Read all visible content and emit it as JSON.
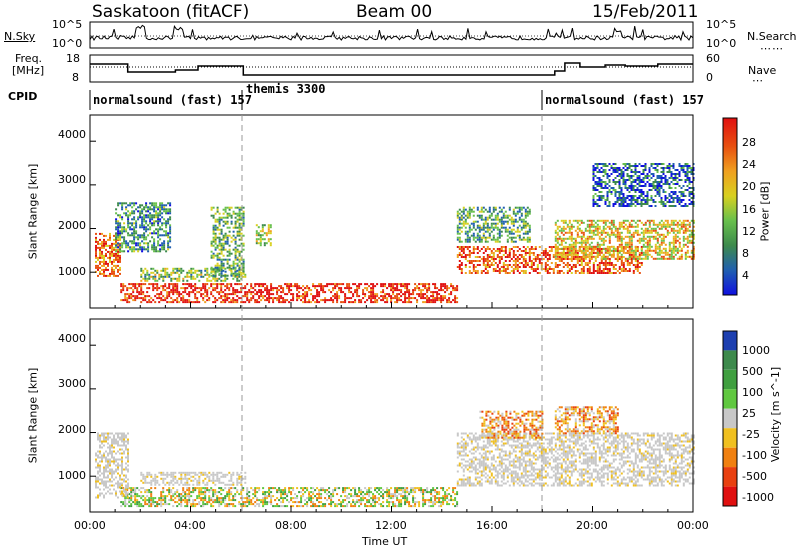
{
  "header": {
    "station": "Saskatoon (fitACF)",
    "beam": "Beam 00",
    "date": "15/Feb/2011"
  },
  "noise_panel": {
    "left_label": "N.Sky",
    "right_label": "N.Search",
    "left_ticks": [
      "10^5",
      "10^0"
    ],
    "right_ticks": [
      "10^5",
      "10^0"
    ]
  },
  "freq_panel": {
    "left_label_line1": "Freq.",
    "left_label_line2": "[MHz]",
    "right_label": "Nave",
    "left_ticks": [
      "18",
      "8"
    ],
    "right_ticks": [
      "60",
      "0"
    ]
  },
  "cpid_panel": {
    "label": "CPID",
    "modes": [
      {
        "name": "normalsound (fast) 157",
        "start_hour": 0
      },
      {
        "name": "themis 3300",
        "start_hour": 6
      },
      {
        "name": "normalsound (fast) 157",
        "start_hour": 18
      }
    ]
  },
  "chart_data": [
    {
      "type": "heatmap",
      "title": "Power",
      "ylabel": "Slant Range [km]",
      "xlabel": "Time UT",
      "xlim": [
        0,
        24
      ],
      "ylim": [
        180,
        4600
      ],
      "yticks": [
        "1000",
        "2000",
        "3000",
        "4000"
      ],
      "xticks": [
        "00:00",
        "04:00",
        "08:00",
        "12:00",
        "16:00",
        "20:00",
        "00:00"
      ],
      "colorbar_label": "Power [dB]",
      "colorbar_ticks": [
        "4",
        "8",
        "12",
        "16",
        "20",
        "24",
        "28"
      ],
      "colorbar_colors": [
        "#1010e0",
        "#205fb0",
        "#3d8a4c",
        "#68c04c",
        "#d8d020",
        "#f0a020",
        "#e85010",
        "#e01010"
      ],
      "regions": [
        {
          "t0": 1.2,
          "t1": 14.6,
          "r0": 300,
          "r1": 750,
          "level": 0.9
        },
        {
          "t0": 0.2,
          "t1": 1.2,
          "r0": 900,
          "r1": 1900,
          "level": 0.75
        },
        {
          "t0": 14.6,
          "t1": 22,
          "r0": 1000,
          "r1": 1600,
          "level": 0.8
        },
        {
          "t0": 18.5,
          "t1": 24,
          "r0": 1300,
          "r1": 2200,
          "level": 0.6
        },
        {
          "t0": 2,
          "t1": 6.2,
          "r0": 800,
          "r1": 1100,
          "level": 0.45
        },
        {
          "t0": 1,
          "t1": 3.2,
          "r0": 1500,
          "r1": 2600,
          "level": 0.3
        },
        {
          "t0": 14.6,
          "t1": 17.5,
          "r0": 1700,
          "r1": 2500,
          "level": 0.35
        },
        {
          "t0": 6.6,
          "t1": 7.2,
          "r0": 1600,
          "r1": 2100,
          "level": 0.55
        },
        {
          "t0": 4.8,
          "t1": 6.1,
          "r0": 900,
          "r1": 2500,
          "level": 0.4
        },
        {
          "t0": 20,
          "t1": 24,
          "r0": 2500,
          "r1": 3500,
          "level": 0.2
        }
      ]
    },
    {
      "type": "heatmap",
      "title": "Velocity",
      "ylabel": "Slant Range [km]",
      "xlabel": "Time UT",
      "xlim": [
        0,
        24
      ],
      "ylim": [
        180,
        4600
      ],
      "yticks": [
        "1000",
        "2000",
        "3000",
        "4000"
      ],
      "xticks": [
        "00:00",
        "04:00",
        "08:00",
        "12:00",
        "16:00",
        "20:00",
        "00:00"
      ],
      "colorbar_label": "Velocity [m s^-1]",
      "colorbar_ticks": [
        "1000",
        "500",
        "100",
        "25",
        "-25",
        "-100",
        "-500",
        "-1000"
      ],
      "colorbar_colors": [
        "#1d3fb0",
        "#3d8a4c",
        "#3f9f3f",
        "#60c840",
        "#c8c8c8",
        "#f0c020",
        "#f08010",
        "#e84010",
        "#e01010"
      ],
      "regions": [
        {
          "t0": 1.2,
          "t1": 14.6,
          "r0": 300,
          "r1": 750,
          "vel": "mixed"
        },
        {
          "t0": 14.6,
          "t1": 24,
          "r0": 800,
          "r1": 2000,
          "vel": "gray"
        },
        {
          "t0": 2,
          "t1": 6.2,
          "r0": 800,
          "r1": 1100,
          "vel": "gray"
        },
        {
          "t0": 15.5,
          "t1": 18,
          "r0": 1900,
          "r1": 2500,
          "vel": "negative"
        },
        {
          "t0": 18.5,
          "t1": 21,
          "r0": 2000,
          "r1": 2600,
          "vel": "negative"
        },
        {
          "t0": 0.2,
          "t1": 1.5,
          "r0": 500,
          "r1": 2000,
          "vel": "gray"
        }
      ]
    }
  ]
}
